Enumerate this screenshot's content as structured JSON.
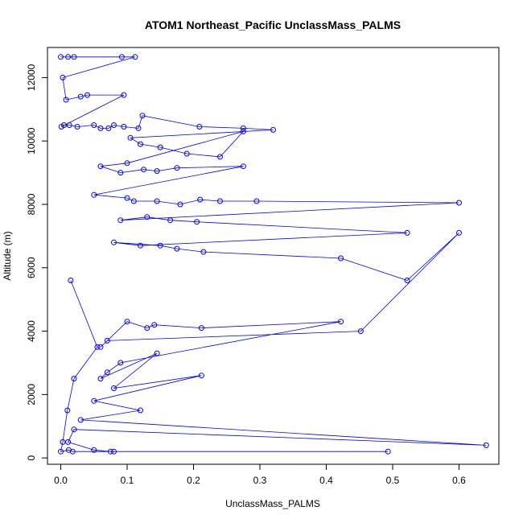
{
  "chart_data": {
    "type": "scatter",
    "title": "ATOM1 Northeast_Pacific UnclassMass_PALMS",
    "xlabel": "UnclassMass_PALMS",
    "ylabel": "Altitude (m)",
    "xlim": [
      -0.02,
      0.66
    ],
    "ylim": [
      -200,
      12950
    ],
    "xticks": [
      0.0,
      0.1,
      0.2,
      0.3,
      0.4,
      0.5,
      0.6
    ],
    "xtick_labels": [
      "0.0",
      "0.1",
      "0.2",
      "0.3",
      "0.4",
      "0.5",
      "0.6"
    ],
    "yticks": [
      0,
      2000,
      4000,
      6000,
      8000,
      10000,
      12000
    ],
    "ytick_labels": [
      "0",
      "2000",
      "4000",
      "6000",
      "8000",
      "10000",
      "12000"
    ],
    "grid": false,
    "legend": "none",
    "color": "#0000ff",
    "series": [
      {
        "x": [
          0.0,
          0.011,
          0.02,
          0.092,
          0.112,
          0.003,
          0.008,
          0.03,
          0.04,
          0.095,
          0.001,
          0.005,
          0.013,
          0.025,
          0.05,
          0.06,
          0.072,
          0.08,
          0.095,
          0.117,
          0.123,
          0.209,
          0.275,
          0.32,
          0.105,
          0.12,
          0.15,
          0.19,
          0.24,
          0.275,
          0.1,
          0.06,
          0.09,
          0.125,
          0.145,
          0.175,
          0.275,
          0.05,
          0.1,
          0.11,
          0.145,
          0.18,
          0.21,
          0.24,
          0.295,
          0.6,
          0.09,
          0.13,
          0.165,
          0.205,
          0.522,
          0.12,
          0.08,
          0.15,
          0.175,
          0.215,
          0.422,
          0.522,
          0.6,
          0.452,
          0.07,
          0.06,
          0.1,
          0.13,
          0.141,
          0.212,
          0.422,
          0.09,
          0.07,
          0.06,
          0.145,
          0.08,
          0.212,
          0.05,
          0.12,
          0.03,
          0.641,
          0.02,
          0.011,
          0.05,
          0.075,
          0.08,
          0.493,
          0.018,
          0.012,
          0.0,
          0.003,
          0.01,
          0.02,
          0.055,
          0.015
        ],
        "y": [
          12650,
          12650,
          12650,
          12650,
          12650,
          12000,
          11300,
          11400,
          11450,
          11450,
          10450,
          10500,
          10500,
          10450,
          10500,
          10400,
          10400,
          10500,
          10450,
          10400,
          10800,
          10450,
          10400,
          10350,
          10100,
          9900,
          9800,
          9600,
          9500,
          10300,
          9300,
          9200,
          9000,
          9100,
          9050,
          9150,
          9200,
          8300,
          8200,
          8100,
          8100,
          8000,
          8150,
          8100,
          8100,
          8050,
          7500,
          7600,
          7500,
          7450,
          7100,
          6700,
          6800,
          6700,
          6600,
          6500,
          6300,
          5600,
          7100,
          4000,
          3700,
          3500,
          4300,
          4100,
          4200,
          4100,
          4300,
          3000,
          2700,
          2500,
          3300,
          2200,
          2600,
          1800,
          1500,
          1200,
          400,
          900,
          500,
          250,
          200,
          200,
          200,
          200,
          250,
          200,
          500,
          1500,
          2500,
          3500,
          5600
        ]
      }
    ]
  }
}
